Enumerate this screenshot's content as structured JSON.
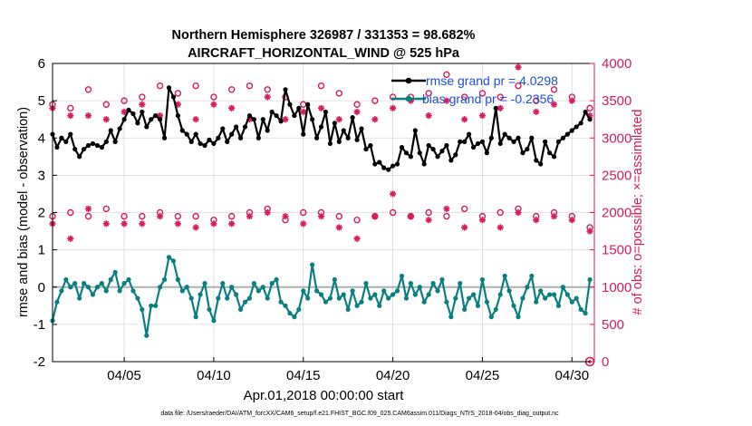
{
  "chart_data": {
    "type": "line",
    "title_line1": "Northern Hemisphere 326987 / 331353 = 98.682%",
    "title_line2": "AIRCRAFT_HORIZONTAL_WIND @ 525 hPa",
    "xlabel": "Apr.01,2018 00:00:00 start",
    "ylabel_left": "rmse and bias (model - observation)",
    "ylabel_right": "# of obs: o=possible; ×=assimilated",
    "footer": "data file: /Users/raeder/DAI/ATM_forcXX/CAM6_setup/f.e21.FHIST_BGC.f09_025.CAM6assim.011/Diags_NTrS_2018-04/obs_diag_output.nc",
    "xlim": [
      1,
      31.25
    ],
    "ylim_left": [
      -2,
      6
    ],
    "ylim_right": [
      0,
      4000
    ],
    "x_ticks": [
      5,
      10,
      15,
      20,
      25,
      30
    ],
    "x_tick_labels": [
      "04/05",
      "04/10",
      "04/15",
      "04/20",
      "04/25",
      "04/30"
    ],
    "y_left_ticks": [
      "-2",
      "-1",
      "0",
      "1",
      "2",
      "3",
      "4",
      "5",
      "6"
    ],
    "y_right_ticks": [
      "0",
      "500",
      "1000",
      "1500",
      "2000",
      "2500",
      "3000",
      "3500",
      "4000"
    ],
    "legend": [
      {
        "label": "rmse grand pr = 4.0298",
        "color": "#000000"
      },
      {
        "label": "bias grand pr = -0.2356",
        "color": "#0a7f7f"
      }
    ],
    "colors": {
      "rmse": "#000000",
      "bias": "#0a7f7f",
      "obs": "#d81b60",
      "zero_line": "#b0b0b0",
      "legend_text": "#1f4fd8"
    },
    "x": [
      1.0,
      1.25,
      1.5,
      1.75,
      2.0,
      2.25,
      2.5,
      2.75,
      3.0,
      3.25,
      3.5,
      3.75,
      4.0,
      4.25,
      4.5,
      4.75,
      5.0,
      5.25,
      5.5,
      5.75,
      6.0,
      6.25,
      6.5,
      6.75,
      7.0,
      7.25,
      7.5,
      7.75,
      8.0,
      8.25,
      8.5,
      8.75,
      9.0,
      9.25,
      9.5,
      9.75,
      10.0,
      10.25,
      10.5,
      10.75,
      11.0,
      11.25,
      11.5,
      11.75,
      12.0,
      12.25,
      12.5,
      12.75,
      13.0,
      13.25,
      13.5,
      13.75,
      14.0,
      14.25,
      14.5,
      14.75,
      15.0,
      15.25,
      15.5,
      15.75,
      16.0,
      16.25,
      16.5,
      16.75,
      17.0,
      17.25,
      17.5,
      17.75,
      18.0,
      18.25,
      18.5,
      18.75,
      19.0,
      19.25,
      19.5,
      19.75,
      20.0,
      20.25,
      20.5,
      20.75,
      21.0,
      21.25,
      21.5,
      21.75,
      22.0,
      22.25,
      22.5,
      22.75,
      23.0,
      23.25,
      23.5,
      23.75,
      24.0,
      24.25,
      24.5,
      24.75,
      25.0,
      25.25,
      25.5,
      25.75,
      26.0,
      26.25,
      26.5,
      26.75,
      27.0,
      27.25,
      27.5,
      27.75,
      28.0,
      28.25,
      28.5,
      28.75,
      29.0,
      29.25,
      29.5,
      29.75,
      30.0,
      30.25,
      30.5,
      30.75,
      31.0
    ],
    "series": [
      {
        "name": "rmse",
        "values": [
          4.1,
          3.75,
          4.0,
          3.9,
          4.1,
          3.7,
          3.5,
          3.7,
          3.8,
          3.85,
          3.8,
          3.75,
          3.9,
          4.2,
          3.9,
          4.25,
          4.5,
          4.75,
          4.65,
          4.4,
          4.7,
          4.3,
          4.5,
          4.6,
          4.5,
          4.0,
          5.35,
          5.1,
          4.6,
          4.2,
          4.1,
          3.9,
          4.1,
          3.85,
          3.8,
          3.95,
          3.85,
          4.0,
          4.25,
          3.9,
          4.1,
          4.3,
          4.0,
          4.3,
          4.6,
          4.5,
          4.0,
          4.5,
          4.2,
          4.7,
          4.6,
          4.45,
          5.3,
          4.9,
          4.6,
          4.8,
          4.1,
          4.9,
          4.5,
          4.0,
          4.3,
          4.7,
          3.85,
          4.4,
          3.9,
          4.2,
          4.0,
          4.55,
          3.95,
          4.25,
          3.7,
          3.8,
          3.3,
          3.35,
          3.2,
          3.15,
          3.25,
          3.3,
          3.75,
          3.6,
          3.5,
          4.2,
          3.6,
          3.3,
          3.8,
          3.7,
          3.5,
          3.65,
          3.8,
          3.4,
          3.55,
          3.9,
          3.9,
          4.1,
          3.75,
          3.85,
          3.9,
          3.6,
          4.0,
          4.8,
          3.85,
          4.1,
          4.0,
          3.9,
          4.0,
          3.6,
          3.7,
          4.0,
          3.4,
          3.3,
          3.9,
          3.6,
          3.5,
          3.9,
          4.0,
          4.1,
          4.2,
          4.3,
          4.4,
          4.7,
          4.5
        ]
      },
      {
        "name": "bias",
        "values": [
          -0.9,
          -0.4,
          -0.1,
          0.2,
          0.0,
          0.1,
          -0.3,
          0.1,
          0.0,
          -0.2,
          0.0,
          0.1,
          -0.1,
          0.2,
          0.4,
          -0.1,
          0.1,
          0.2,
          -0.1,
          -0.3,
          -0.6,
          -1.3,
          -0.5,
          -0.5,
          0.0,
          0.2,
          0.8,
          0.7,
          0.2,
          -0.1,
          0.0,
          -0.3,
          -0.8,
          -0.2,
          0.1,
          -0.6,
          -0.9,
          -0.3,
          0.1,
          -0.3,
          0.0,
          -0.2,
          -0.6,
          -0.4,
          -0.3,
          0.1,
          -0.1,
          0.0,
          -0.3,
          0.1,
          0.2,
          -0.4,
          -0.5,
          -0.7,
          -0.8,
          -0.6,
          -0.1,
          -0.3,
          0.6,
          -0.1,
          -0.2,
          -0.4,
          -0.3,
          0.2,
          -0.3,
          -0.2,
          -0.6,
          -0.1,
          -0.5,
          -0.4,
          0.1,
          -0.3,
          -0.2,
          -0.5,
          -0.1,
          -0.3,
          -0.2,
          -0.1,
          0.3,
          -0.3,
          0.1,
          -0.2,
          0.0,
          -0.4,
          -0.2,
          0.1,
          -0.1,
          0.2,
          -0.4,
          -0.8,
          -0.3,
          0.1,
          -0.6,
          -0.3,
          -0.2,
          -0.5,
          0.2,
          -0.4,
          -0.8,
          -0.6,
          -0.2,
          0.3,
          -0.1,
          -0.5,
          -0.8,
          -0.3,
          0.0,
          0.3,
          -0.4,
          -0.1,
          -0.3,
          -0.2,
          -0.2,
          -0.5,
          0.0,
          -0.2,
          -0.4,
          -0.3,
          -0.6,
          -0.7,
          0.2
        ]
      }
    ],
    "obs_days": [
      1,
      2,
      3,
      4,
      5,
      6,
      7,
      8,
      9,
      10,
      11,
      12,
      13,
      14,
      15,
      16,
      17,
      18,
      19,
      20,
      21,
      22,
      23,
      24,
      25,
      26,
      27,
      28,
      29,
      30,
      31
    ],
    "obs_possible_high": [
      3450,
      3400,
      3650,
      3450,
      3500,
      3550,
      3700,
      3600,
      3700,
      3550,
      3650,
      3700,
      3650,
      3550,
      3450,
      3700,
      3600,
      3450,
      3500,
      3550,
      3550,
      3600,
      3850,
      3550,
      3600,
      3550,
      3700,
      3500,
      3650,
      3550,
      3400
    ],
    "obs_assimilated_high": [
      3400,
      3300,
      3300,
      3250,
      3350,
      3450,
      3300,
      3450,
      3250,
      3450,
      3400,
      3250,
      3550,
      3250,
      3350,
      3400,
      3250,
      3350,
      3250,
      3400,
      3500,
      3300,
      3500,
      3250,
      3300,
      3400,
      3950,
      3350,
      3450,
      3500,
      3300
    ],
    "obs_possible_low": [
      1950,
      2000,
      1950,
      2050,
      1950,
      1950,
      2000,
      1950,
      1950,
      1900,
      1950,
      2000,
      2050,
      1900,
      2000,
      2000,
      1950,
      1900,
      1950,
      2000,
      1950,
      2000,
      1950,
      2050,
      1950,
      2000,
      2050,
      1950,
      2000,
      1950,
      1800
    ],
    "obs_assimilated_low": [
      1850,
      1650,
      2050,
      1850,
      1850,
      1850,
      1950,
      1850,
      1800,
      1850,
      1850,
      1950,
      2000,
      1950,
      1850,
      1950,
      1800,
      1650,
      1950,
      2250,
      1950,
      1900,
      2050,
      1800,
      1900,
      1800,
      2000,
      1900,
      1950,
      1900,
      1750
    ],
    "obs_outlier_possible": {
      "x": 31,
      "value": 0
    }
  }
}
